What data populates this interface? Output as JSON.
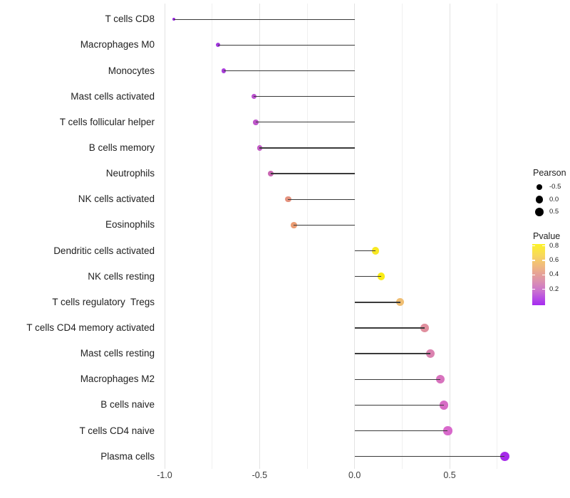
{
  "chart_data": {
    "type": "scatter",
    "variant": "lollipop-dot-chart",
    "title": "",
    "xlabel": "",
    "ylabel": "",
    "xlim": [
      -1.04,
      0.88
    ],
    "x_ticks": [
      {
        "value": -1.0,
        "label": "-1.0"
      },
      {
        "value": -0.5,
        "label": "-0.5"
      },
      {
        "value": 0.0,
        "label": "0.0"
      },
      {
        "value": 0.5,
        "label": "0.5"
      }
    ],
    "x_minor_gridlines": [
      -0.75,
      -0.25,
      0.25,
      0.75
    ],
    "grid": "vertical-only",
    "points": [
      {
        "label": "T cells CD8",
        "pearson": -0.95,
        "pvalue_approx": 0.01,
        "color": "#9726DE"
      },
      {
        "label": "Macrophages M0",
        "pearson": -0.72,
        "pvalue_approx": 0.07,
        "color": "#A238E0"
      },
      {
        "label": "Monocytes",
        "pearson": -0.69,
        "pvalue_approx": 0.09,
        "color": "#A93EDA"
      },
      {
        "label": "Mast cells activated",
        "pearson": -0.53,
        "pvalue_approx": 0.17,
        "color": "#BC52D0"
      },
      {
        "label": "T cells follicular helper",
        "pearson": -0.52,
        "pvalue_approx": 0.19,
        "color": "#BF56CB"
      },
      {
        "label": "B cells memory",
        "pearson": -0.5,
        "pvalue_approx": 0.22,
        "color": "#C45DC6"
      },
      {
        "label": "Neutrophils",
        "pearson": -0.44,
        "pvalue_approx": 0.3,
        "color": "#C966B2"
      },
      {
        "label": "NK cells activated",
        "pearson": -0.35,
        "pvalue_approx": 0.55,
        "color": "#E5937F"
      },
      {
        "label": "Eosinophils",
        "pearson": -0.32,
        "pvalue_approx": 0.6,
        "color": "#EB9C72"
      },
      {
        "label": "Dendritic cells activated",
        "pearson": 0.11,
        "pvalue_approx": 0.8,
        "color": "#F8E822"
      },
      {
        "label": "NK cells resting",
        "pearson": 0.14,
        "pvalue_approx": 0.82,
        "color": "#F9EC15"
      },
      {
        "label": "T cells regulatory  Tregs",
        "pearson": 0.24,
        "pvalue_approx": 0.64,
        "color": "#EFBE73"
      },
      {
        "label": "T cells CD4 memory activated",
        "pearson": 0.37,
        "pvalue_approx": 0.46,
        "color": "#E08F9E"
      },
      {
        "label": "Mast cells resting",
        "pearson": 0.4,
        "pvalue_approx": 0.39,
        "color": "#DB82B0"
      },
      {
        "label": "Macrophages M2",
        "pearson": 0.45,
        "pvalue_approx": 0.31,
        "color": "#D873BE"
      },
      {
        "label": "B cells naive",
        "pearson": 0.47,
        "pvalue_approx": 0.28,
        "color": "#D76DC5"
      },
      {
        "label": "T cells CD4 naive",
        "pearson": 0.49,
        "pvalue_approx": 0.26,
        "color": "#D869CB"
      },
      {
        "label": "Plasma cells",
        "pearson": 0.79,
        "pvalue_approx": 0.02,
        "color": "#A62BEA"
      }
    ],
    "legend_size": {
      "title": "Pearson",
      "entries": [
        {
          "value": -0.5,
          "label": "-0.5"
        },
        {
          "value": 0.0,
          "label": "0.0"
        },
        {
          "value": 0.5,
          "label": "0.5"
        }
      ],
      "dot_color": "#000000",
      "position": "right"
    },
    "legend_color": {
      "title": "Pvalue",
      "ticks": [
        {
          "value": 0.8,
          "label": "0.8"
        },
        {
          "value": 0.6,
          "label": "0.6"
        },
        {
          "value": 0.4,
          "label": "0.4"
        },
        {
          "value": 0.2,
          "label": "0.2"
        }
      ],
      "range": [
        0.0,
        0.83
      ],
      "gradient_stops": [
        {
          "color": "#FCF227",
          "pos": 0
        },
        {
          "color": "#F8D95B",
          "pos": 18
        },
        {
          "color": "#F0B97F",
          "pos": 36
        },
        {
          "color": "#E5A099",
          "pos": 50
        },
        {
          "color": "#DA8FB2",
          "pos": 62
        },
        {
          "color": "#CB74CE",
          "pos": 76
        },
        {
          "color": "#B84FE3",
          "pos": 88
        },
        {
          "color": "#A52BF0",
          "pos": 100
        }
      ],
      "position": "right"
    },
    "colors": {
      "segment": "#3a3a3a",
      "gridline_major": "#e3e3e3",
      "gridline_minor": "#f0f0f0",
      "category_text": "#1f1f1f",
      "axis_text": "#3d3d3d",
      "background": "#ffffff"
    }
  }
}
